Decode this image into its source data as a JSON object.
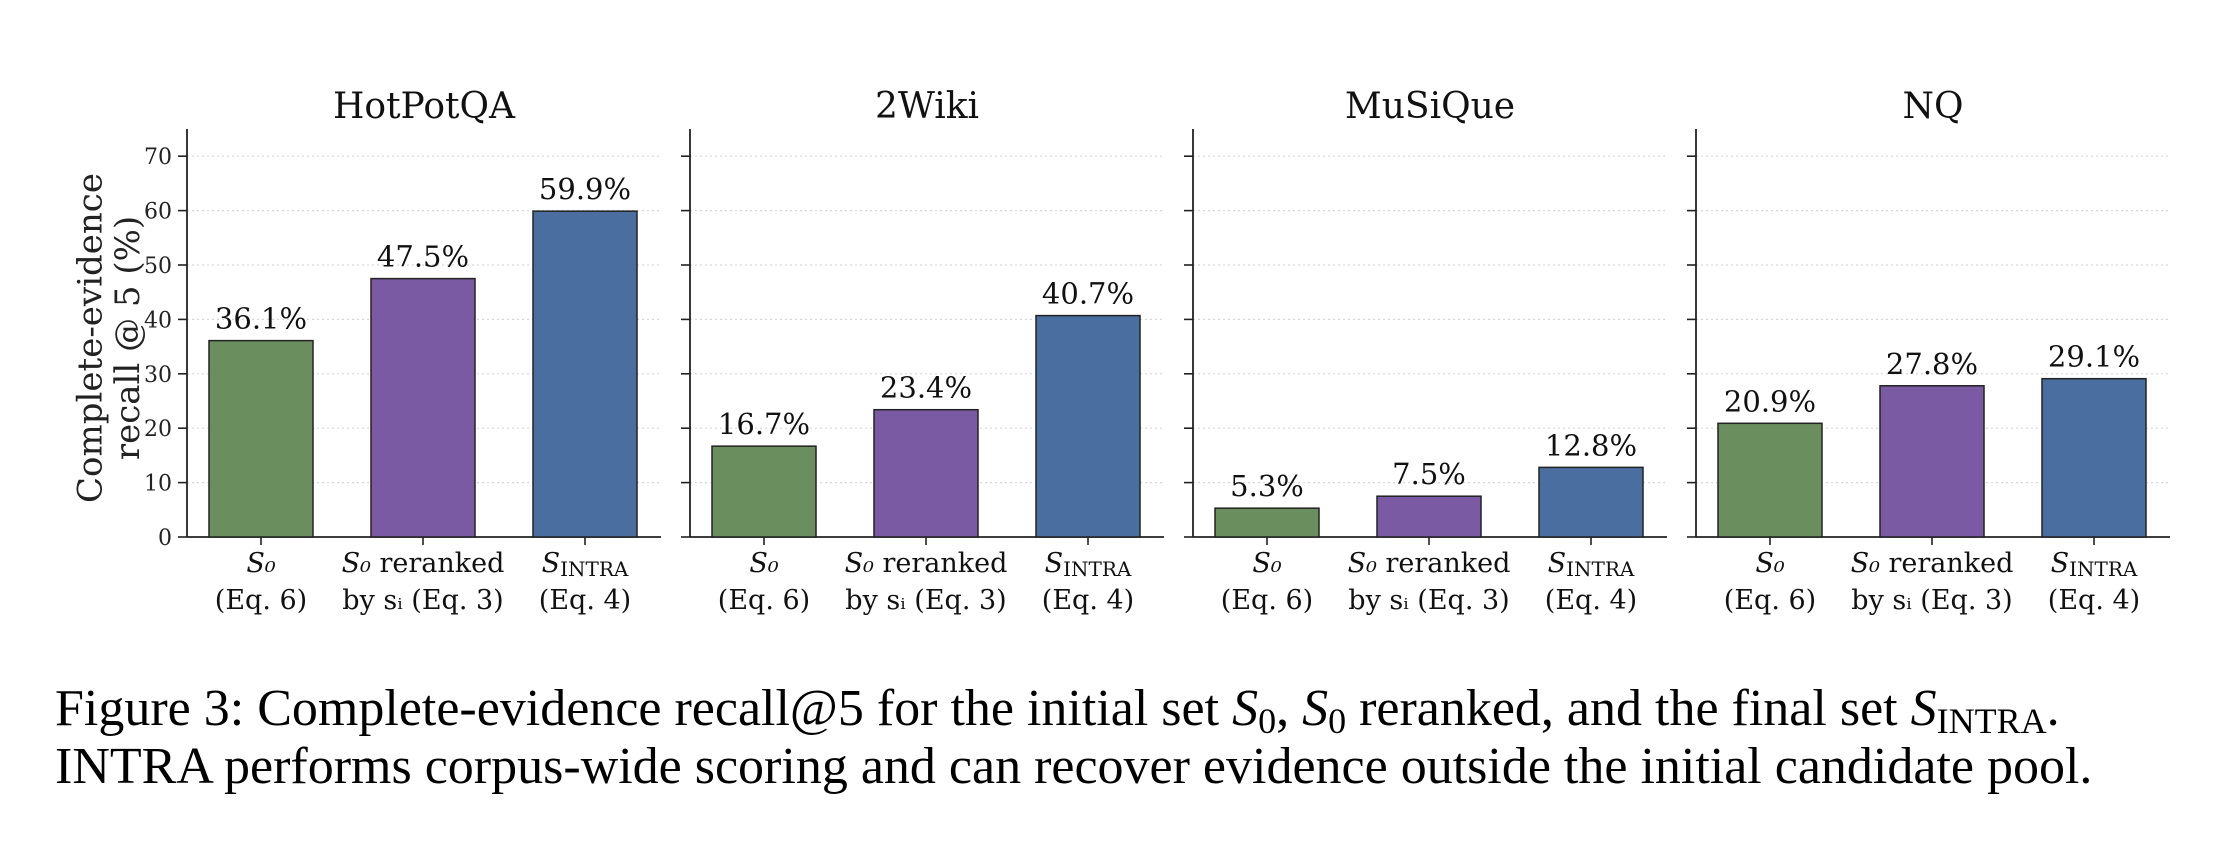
{
  "chart_data": {
    "type": "bar",
    "ylabel": "Complete-evidence recall @ 5 (%)",
    "ylim": [
      0,
      75
    ],
    "yticks": [
      0,
      10,
      20,
      30,
      40,
      50,
      60,
      70
    ],
    "grid": "y, dotted",
    "categories": [
      "S₀ (Eq. 6)",
      "S₀ reranked by sᵢ (Eq. 3)",
      "S_INTRA (Eq. 4)"
    ],
    "colors": [
      "#6a8e5e",
      "#7a5ba3",
      "#4a6ea0"
    ],
    "panels": [
      {
        "title": "HotPotQA",
        "values": [
          36.1,
          47.5,
          59.9
        ]
      },
      {
        "title": "2Wiki",
        "values": [
          16.7,
          23.4,
          40.7
        ]
      },
      {
        "title": "MuSiQue",
        "values": [
          5.3,
          7.5,
          12.8
        ]
      },
      {
        "title": "NQ",
        "values": [
          20.9,
          27.8,
          29.1
        ]
      }
    ]
  },
  "caption": {
    "prefix": "Figure 3: Complete-evidence recall@5 for the initial set ",
    "s0": "S",
    "sub0": "0",
    "comma": ", ",
    "mid": " reranked, and the final set ",
    "sintra": "S",
    "subintra": "INTRA",
    "line2": "INTRA performs corpus-wide scoring and can recover evidence outside the initial candidate pool."
  }
}
